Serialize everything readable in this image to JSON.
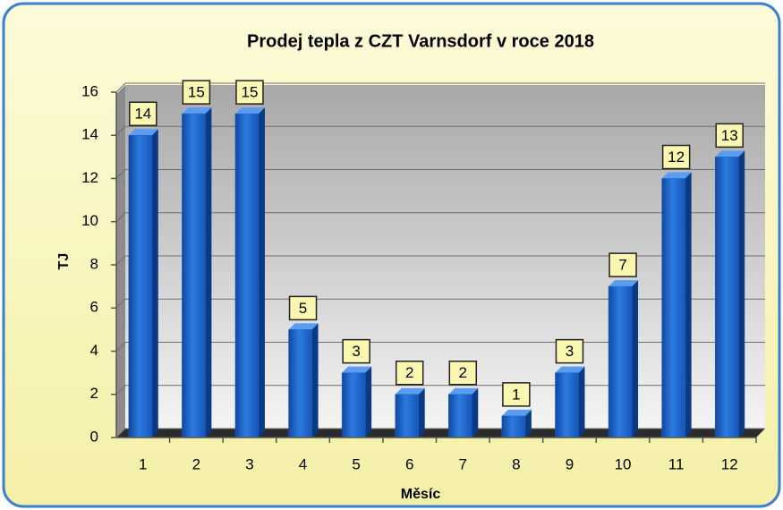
{
  "chart_data": {
    "type": "bar",
    "title": "Prodej tepla z CZT Varnsdorf v roce 2018",
    "x_label": "Měsíc",
    "y_label": "TJ",
    "categories": [
      "1",
      "2",
      "3",
      "4",
      "5",
      "6",
      "7",
      "8",
      "9",
      "10",
      "11",
      "12"
    ],
    "values": [
      14,
      15,
      15,
      5,
      3,
      2,
      2,
      1,
      3,
      7,
      12,
      13
    ],
    "color": "#1f63c4",
    "ylim": [
      0,
      16
    ],
    "yticks": [
      0,
      2,
      4,
      6,
      8,
      10,
      12,
      14,
      16
    ],
    "grid": true
  }
}
